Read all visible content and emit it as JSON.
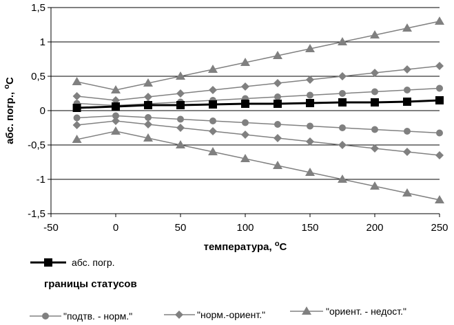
{
  "chart_data": {
    "type": "line",
    "title": "",
    "xlabel": "температура, ",
    "xlabel_unit": "o",
    "xlabel_unit_suffix": "C",
    "ylabel": "абс. погр., ",
    "ylabel_unit": "o",
    "ylabel_unit_suffix": "C",
    "xlim": [
      -50,
      250
    ],
    "ylim": [
      -1.5,
      1.5
    ],
    "xticks": [
      -50,
      0,
      50,
      100,
      150,
      200,
      250
    ],
    "xtick_labels": [
      "-50",
      "0",
      "50",
      "100",
      "150",
      "200",
      "250"
    ],
    "yticks": [
      1.5,
      1,
      0.5,
      0,
      -0.5,
      -1,
      -1.5
    ],
    "ytick_labels": [
      "1,5",
      "1",
      "0,5",
      "0",
      "-0,5",
      "-1",
      "-1,5"
    ],
    "grid": "horizontal",
    "legend_heading": "границы статусов",
    "x": [
      -30,
      0,
      25,
      50,
      75,
      100,
      125,
      150,
      175,
      200,
      225,
      250
    ],
    "series": [
      {
        "name": "абс. погр.",
        "marker": "square",
        "color": "#000000",
        "values": [
          0.04,
          0.06,
          0.08,
          0.08,
          0.09,
          0.1,
          0.1,
          0.11,
          0.12,
          0.12,
          0.13,
          0.15
        ]
      },
      {
        "name": "\"подтв. - норм.\"",
        "marker": "circle",
        "color": "#808080",
        "values": [
          0.105,
          0.075,
          0.1,
          0.125,
          0.15,
          0.175,
          0.2,
          0.225,
          0.25,
          0.275,
          0.3,
          0.325
        ]
      },
      {
        "name": "\"подтв. - норм.\"",
        "marker": "circle",
        "color": "#808080",
        "values": [
          -0.105,
          -0.075,
          -0.1,
          -0.125,
          -0.15,
          -0.175,
          -0.2,
          -0.225,
          -0.25,
          -0.275,
          -0.3,
          -0.325
        ]
      },
      {
        "name": "\"норм.-ориент.\"",
        "marker": "diamond",
        "color": "#808080",
        "values": [
          0.21,
          0.15,
          0.2,
          0.25,
          0.3,
          0.35,
          0.4,
          0.45,
          0.5,
          0.55,
          0.6,
          0.65
        ]
      },
      {
        "name": "\"норм.-ориент.\"",
        "marker": "diamond",
        "color": "#808080",
        "values": [
          -0.21,
          -0.15,
          -0.2,
          -0.25,
          -0.3,
          -0.35,
          -0.4,
          -0.45,
          -0.5,
          -0.55,
          -0.6,
          -0.65
        ]
      },
      {
        "name": "\"ориент. - недост.\"",
        "marker": "triangle",
        "color": "#808080",
        "values": [
          0.42,
          0.3,
          0.4,
          0.5,
          0.6,
          0.7,
          0.8,
          0.9,
          1.0,
          1.1,
          1.2,
          1.3
        ]
      },
      {
        "name": "\"ориент. - недост.\"",
        "marker": "triangle",
        "color": "#808080",
        "values": [
          -0.42,
          -0.3,
          -0.4,
          -0.5,
          -0.6,
          -0.7,
          -0.8,
          -0.9,
          -1.0,
          -1.1,
          -1.2,
          -1.3
        ]
      }
    ],
    "legend": {
      "main": {
        "label": "абс. погр.",
        "marker": "square"
      },
      "status": [
        {
          "label": "\"подтв. - норм.\"",
          "marker": "circle"
        },
        {
          "label": "\"норм.-ориент.\"",
          "marker": "diamond"
        },
        {
          "label": "\"ориент. - недост.\"",
          "marker": "triangle"
        }
      ]
    }
  }
}
